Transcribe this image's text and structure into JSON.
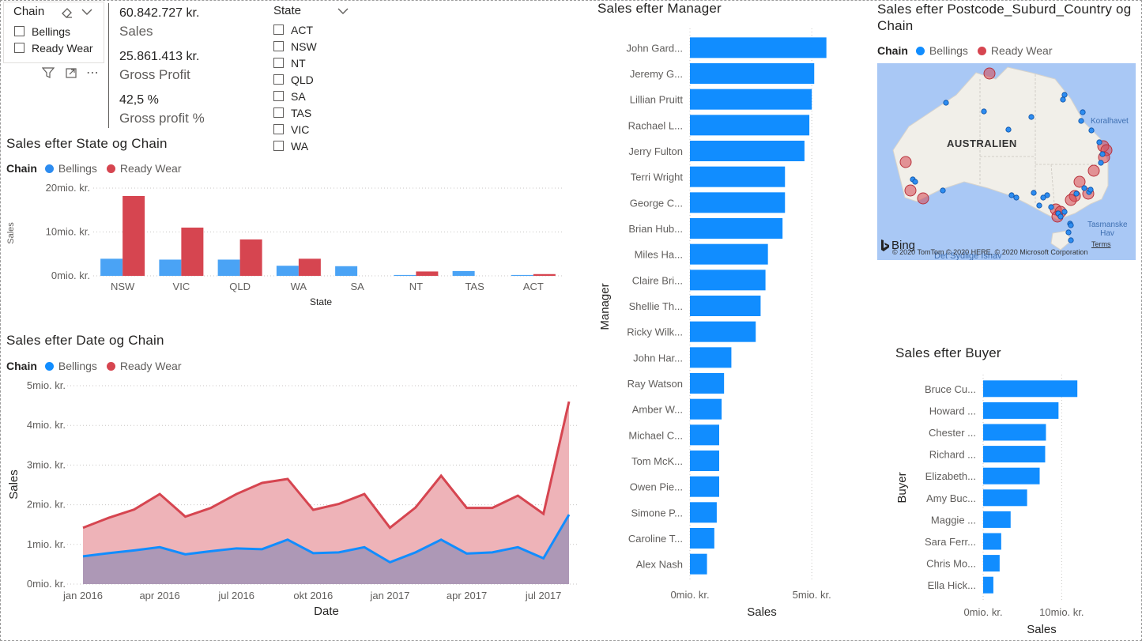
{
  "colors": {
    "bellings": "#2d8cf0",
    "ready_wear": "#d64550",
    "bar": "#118dff",
    "grid": "#c8c6c4"
  },
  "chain_slicer": {
    "title": "Chain",
    "items": [
      "Bellings",
      "Ready Wear"
    ],
    "eraser_icon": "eraser-icon",
    "chevron_icon": "chevron-down-icon"
  },
  "visual_header": {
    "filter_icon": "filter-icon",
    "focus_icon": "focus-mode-icon",
    "more_icon": "more-options-icon"
  },
  "kpis": [
    {
      "value": "60.842.727 kr.",
      "label": "Sales"
    },
    {
      "value": "25.861.413 kr.",
      "label": "Gross Profit"
    },
    {
      "value": "42,5 %",
      "label": "Gross profit %"
    }
  ],
  "state_slicer": {
    "title": "State",
    "items": [
      "ACT",
      "NSW",
      "NT",
      "QLD",
      "SA",
      "TAS",
      "VIC",
      "WA"
    ]
  },
  "state_chart_visual": {
    "title": "Sales efter State og Chain",
    "legend_title": "Chain",
    "legend": [
      "Bellings",
      "Ready Wear"
    ],
    "yticks": [
      "20mio. kr.",
      "10mio. kr.",
      "0mio. kr."
    ],
    "ylabel": "Sales",
    "xlabel": "State"
  },
  "date_chart_visual": {
    "title": "Sales efter Date og Chain",
    "legend_title": "Chain",
    "legend": [
      "Bellings",
      "Ready Wear"
    ],
    "yticks": [
      "5mio. kr.",
      "4mio. kr.",
      "3mio. kr.",
      "2mio. kr.",
      "1mio. kr.",
      "0mio. kr."
    ],
    "xticks": [
      "jan 2016",
      "apr 2016",
      "jul 2016",
      "okt 2016",
      "jan 2017",
      "apr 2017",
      "jul 2017"
    ],
    "ylabel": "Sales",
    "xlabel": "Date"
  },
  "manager_chart_visual": {
    "title": "Sales efter Manager",
    "ylabel": "Manager",
    "xlabel": "Sales",
    "xticks": [
      "0mio. kr.",
      "5mio. kr."
    ]
  },
  "map_visual": {
    "title": "Sales efter Postcode_Suburd_Country og Chain",
    "legend_title": "Chain",
    "legend": [
      "Bellings",
      "Ready Wear"
    ],
    "country_label": "AUSTRALIEN",
    "place_labels": [
      "Koralhavet",
      "Tasmanske Hav"
    ],
    "ocean_label": "Det Sydlige Ishav",
    "logo": "Bing",
    "copyright": "© 2020 TomTom © 2020 HERE, © 2020 Microsoft Corporation",
    "terms": "Terms"
  },
  "buyer_chart_visual": {
    "title": "Sales efter Buyer",
    "ylabel": "Buyer",
    "xlabel": "Sales",
    "xticks": [
      "0mio. kr.",
      "10mio. kr."
    ]
  },
  "chart_data": [
    {
      "type": "bar",
      "title": "Sales efter State og Chain",
      "xlabel": "State",
      "ylabel": "Sales",
      "categories": [
        "NSW",
        "VIC",
        "QLD",
        "WA",
        "SA",
        "NT",
        "TAS",
        "ACT"
      ],
      "series": [
        {
          "name": "Bellings",
          "values": [
            3.9,
            3.7,
            3.7,
            2.3,
            2.2,
            0.2,
            1.1,
            0.2
          ]
        },
        {
          "name": "Ready Wear",
          "values": [
            18.2,
            11.0,
            8.3,
            3.9,
            0.0,
            1.0,
            0.0,
            0.4
          ]
        }
      ],
      "ylim": [
        0,
        20
      ],
      "yunit": "mio. kr.",
      "grid": true,
      "legend": "top-left"
    },
    {
      "type": "area",
      "title": "Sales efter Date og Chain",
      "xlabel": "Date",
      "ylabel": "Sales",
      "x": [
        "2016-01",
        "2016-02",
        "2016-03",
        "2016-04",
        "2016-05",
        "2016-06",
        "2016-07",
        "2016-08",
        "2016-09",
        "2016-10",
        "2016-11",
        "2016-12",
        "2017-01",
        "2017-02",
        "2017-03",
        "2017-04",
        "2017-05",
        "2017-06",
        "2017-07",
        "2017-08"
      ],
      "series": [
        {
          "name": "Bellings",
          "values": [
            0.7,
            0.78,
            0.85,
            0.93,
            0.75,
            0.83,
            0.9,
            0.88,
            1.12,
            0.78,
            0.8,
            0.93,
            0.55,
            0.8,
            1.12,
            0.77,
            0.8,
            0.93,
            0.65,
            1.75
          ]
        },
        {
          "name": "Ready Wear",
          "values": [
            1.42,
            1.67,
            1.88,
            2.27,
            1.7,
            1.92,
            2.27,
            2.55,
            2.65,
            1.87,
            2.02,
            2.27,
            1.42,
            1.93,
            2.73,
            1.92,
            1.92,
            2.23,
            1.77,
            4.6
          ]
        }
      ],
      "ylim": [
        0,
        5
      ],
      "yunit": "mio. kr.",
      "grid": true,
      "legend": "top-left"
    },
    {
      "type": "bar",
      "orientation": "horizontal",
      "title": "Sales efter Manager",
      "xlabel": "Sales",
      "ylabel": "Manager",
      "categories": [
        "John Gard...",
        "Jeremy G...",
        "Lillian Pruitt",
        "Rachael L...",
        "Jerry Fulton",
        "Terri Wright",
        "George C...",
        "Brian Hub...",
        "Miles Ha...",
        "Claire Bri...",
        "Shellie Th...",
        "Ricky Wilk...",
        "John Har...",
        "Ray Watson",
        "Amber W...",
        "Michael C...",
        "Tom McK...",
        "Owen Pie...",
        "Simone P...",
        "Caroline T...",
        "Alex Nash"
      ],
      "values": [
        5.6,
        5.1,
        5.0,
        4.9,
        4.7,
        3.9,
        3.9,
        3.8,
        3.2,
        3.1,
        2.9,
        2.7,
        1.7,
        1.4,
        1.3,
        1.2,
        1.2,
        1.2,
        1.1,
        1.0,
        0.7
      ],
      "xlim": [
        0,
        6
      ],
      "xunit": "mio. kr.",
      "grid": true
    },
    {
      "type": "bar",
      "orientation": "horizontal",
      "title": "Sales efter Buyer",
      "xlabel": "Sales",
      "ylabel": "Buyer",
      "categories": [
        "Bruce Cu...",
        "Howard ...",
        "Chester ...",
        "Richard ...",
        "Elizabeth...",
        "Amy Buc...",
        "Maggie ...",
        "Sara Ferr...",
        "Chris Mo...",
        "Ella Hick..."
      ],
      "values": [
        12.0,
        9.6,
        8.0,
        7.9,
        7.2,
        5.6,
        3.5,
        2.3,
        2.1,
        1.3
      ],
      "xlim": [
        0,
        15
      ],
      "xunit": "mio. kr.",
      "grid": true
    }
  ]
}
